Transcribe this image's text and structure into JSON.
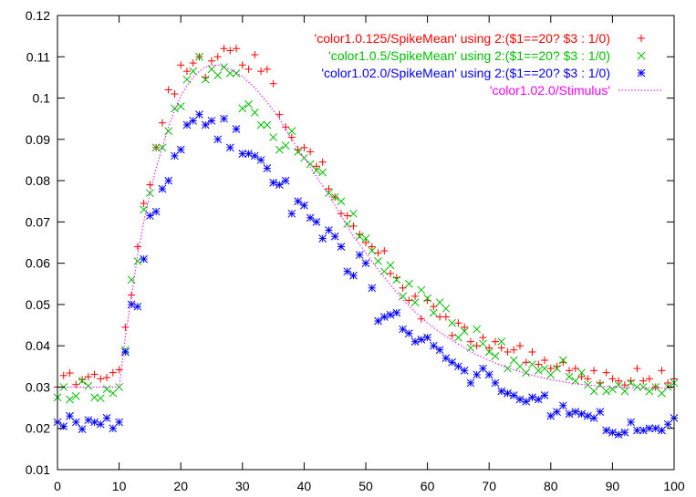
{
  "chart_data": {
    "type": "scatter",
    "title": "",
    "xlabel": "",
    "ylabel": "",
    "xlim": [
      0,
      100
    ],
    "ylim": [
      0.01,
      0.12
    ],
    "x_ticks": [
      "0",
      "10",
      "20",
      "30",
      "40",
      "50",
      "60",
      "70",
      "80",
      "90",
      "100"
    ],
    "y_ticks": [
      "0.01",
      "0.02",
      "0.03",
      "0.04",
      "0.05",
      "0.06",
      "0.07",
      "0.08",
      "0.09",
      "0.1",
      "0.11",
      "0.12"
    ],
    "grid": false,
    "legend_position": "top-right",
    "series": [
      {
        "name": "'color1.0.125/SpikeMean' using 2:($1==20? $3 : 1/0)",
        "marker": "plus",
        "color": "#ff0000",
        "x": [
          0,
          1,
          2,
          3,
          4,
          5,
          6,
          7,
          8,
          9,
          10,
          11,
          12,
          13,
          14,
          15,
          16,
          17,
          18,
          19,
          20,
          21,
          22,
          23,
          24,
          25,
          26,
          27,
          28,
          29,
          30,
          31,
          32,
          33,
          34,
          35,
          36,
          37,
          38,
          39,
          40,
          41,
          42,
          43,
          44,
          45,
          46,
          47,
          48,
          49,
          50,
          51,
          52,
          53,
          54,
          55,
          56,
          57,
          58,
          59,
          60,
          61,
          62,
          63,
          64,
          65,
          66,
          67,
          68,
          69,
          70,
          71,
          72,
          73,
          74,
          75,
          76,
          77,
          78,
          79,
          80,
          81,
          82,
          83,
          84,
          85,
          86,
          87,
          88,
          89,
          90,
          91,
          92,
          93,
          94,
          95,
          96,
          97,
          98,
          99,
          100
        ],
        "y": [
          0.03,
          0.0328,
          0.0334,
          0.0306,
          0.0318,
          0.0325,
          0.0331,
          0.032,
          0.0323,
          0.0335,
          0.0342,
          0.0445,
          0.0523,
          0.064,
          0.0745,
          0.079,
          0.088,
          0.094,
          0.102,
          0.101,
          0.108,
          0.1065,
          0.1085,
          0.11,
          0.105,
          0.109,
          0.11,
          0.112,
          0.1115,
          0.112,
          0.108,
          0.107,
          0.1105,
          0.1065,
          0.107,
          0.1035,
          0.096,
          0.093,
          0.0905,
          0.0875,
          0.088,
          0.087,
          0.0835,
          0.0845,
          0.078,
          0.076,
          0.072,
          0.0715,
          0.069,
          0.067,
          0.065,
          0.064,
          0.0625,
          0.063,
          0.0575,
          0.0565,
          0.054,
          0.051,
          0.052,
          0.0465,
          0.051,
          0.0495,
          0.047,
          0.047,
          0.0425,
          0.0455,
          0.0445,
          0.041,
          0.04,
          0.042,
          0.0395,
          0.041,
          0.0395,
          0.0385,
          0.039,
          0.04,
          0.036,
          0.0385,
          0.0355,
          0.0365,
          0.0345,
          0.035,
          0.036,
          0.034,
          0.0345,
          0.0325,
          0.032,
          0.034,
          0.031,
          0.0335,
          0.032,
          0.0315,
          0.0305,
          0.0315,
          0.0345,
          0.0315,
          0.032,
          0.03,
          0.034,
          0.031,
          0.032
        ]
      },
      {
        "name": "'color1.0.5/SpikeMean' using 2:($1==20? $3 : 1/0)",
        "marker": "cross",
        "color": "#00c000",
        "x": [
          0,
          1,
          2,
          3,
          4,
          5,
          6,
          7,
          8,
          9,
          10,
          11,
          12,
          13,
          14,
          15,
          16,
          17,
          18,
          19,
          20,
          21,
          22,
          23,
          24,
          25,
          26,
          27,
          28,
          29,
          30,
          31,
          32,
          33,
          34,
          35,
          36,
          37,
          38,
          39,
          40,
          41,
          42,
          43,
          44,
          45,
          46,
          47,
          48,
          49,
          50,
          51,
          52,
          53,
          54,
          55,
          56,
          57,
          58,
          59,
          60,
          61,
          62,
          63,
          64,
          65,
          66,
          67,
          68,
          69,
          70,
          71,
          72,
          73,
          74,
          75,
          76,
          77,
          78,
          79,
          80,
          81,
          82,
          83,
          84,
          85,
          86,
          87,
          88,
          89,
          90,
          91,
          92,
          93,
          94,
          95,
          96,
          97,
          98,
          99,
          100
        ],
        "y": [
          0.0275,
          0.03,
          0.027,
          0.0278,
          0.0315,
          0.0303,
          0.0275,
          0.0273,
          0.0295,
          0.0285,
          0.03,
          0.039,
          0.056,
          0.0605,
          0.073,
          0.077,
          0.088,
          0.088,
          0.092,
          0.0975,
          0.098,
          0.1045,
          0.1065,
          0.11,
          0.1045,
          0.107,
          0.1055,
          0.1075,
          0.106,
          0.106,
          0.0975,
          0.0985,
          0.0965,
          0.0935,
          0.0935,
          0.0905,
          0.0875,
          0.0885,
          0.092,
          0.087,
          0.0855,
          0.084,
          0.0825,
          0.082,
          0.077,
          0.076,
          0.075,
          0.0695,
          0.072,
          0.0665,
          0.066,
          0.063,
          0.0605,
          0.058,
          0.0595,
          0.056,
          0.052,
          0.055,
          0.0505,
          0.0535,
          0.0515,
          0.048,
          0.0505,
          0.049,
          0.0455,
          0.042,
          0.0435,
          0.0395,
          0.044,
          0.0405,
          0.0385,
          0.0375,
          0.041,
          0.0345,
          0.0365,
          0.035,
          0.0335,
          0.0355,
          0.034,
          0.0345,
          0.033,
          0.0345,
          0.0365,
          0.0325,
          0.0315,
          0.0335,
          0.0305,
          0.029,
          0.0305,
          0.029,
          0.0295,
          0.0305,
          0.029,
          0.031,
          0.03,
          0.03,
          0.029,
          0.03,
          0.0285,
          0.03,
          0.031
        ]
      },
      {
        "name": "'color1.02.0/SpikeMean' using 2:($1==20? $3 : 1/0)",
        "marker": "star",
        "color": "#0000ff",
        "x": [
          0,
          1,
          2,
          3,
          4,
          5,
          6,
          7,
          8,
          9,
          10,
          11,
          12,
          13,
          14,
          15,
          16,
          17,
          18,
          19,
          20,
          21,
          22,
          23,
          24,
          25,
          26,
          27,
          28,
          29,
          30,
          31,
          32,
          33,
          34,
          35,
          36,
          37,
          38,
          39,
          40,
          41,
          42,
          43,
          44,
          45,
          46,
          47,
          48,
          49,
          50,
          51,
          52,
          53,
          54,
          55,
          56,
          57,
          58,
          59,
          60,
          61,
          62,
          63,
          64,
          65,
          66,
          67,
          68,
          69,
          70,
          71,
          72,
          73,
          74,
          75,
          76,
          77,
          78,
          79,
          80,
          81,
          82,
          83,
          84,
          85,
          86,
          87,
          88,
          89,
          90,
          91,
          92,
          93,
          94,
          95,
          96,
          97,
          98,
          99,
          100
        ],
        "y": [
          0.0215,
          0.0205,
          0.023,
          0.0215,
          0.0198,
          0.022,
          0.0215,
          0.021,
          0.0225,
          0.02,
          0.0215,
          0.0385,
          0.05,
          0.0495,
          0.061,
          0.0715,
          0.0725,
          0.078,
          0.08,
          0.086,
          0.0875,
          0.0935,
          0.0945,
          0.096,
          0.0935,
          0.0945,
          0.09,
          0.095,
          0.088,
          0.0925,
          0.0865,
          0.0865,
          0.086,
          0.085,
          0.083,
          0.0795,
          0.079,
          0.08,
          0.072,
          0.075,
          0.074,
          0.071,
          0.07,
          0.066,
          0.068,
          0.0665,
          0.064,
          0.058,
          0.057,
          0.062,
          0.06,
          0.054,
          0.046,
          0.047,
          0.0475,
          0.048,
          0.044,
          0.043,
          0.041,
          0.0415,
          0.042,
          0.04,
          0.039,
          0.037,
          0.036,
          0.035,
          0.034,
          0.031,
          0.033,
          0.0345,
          0.033,
          0.031,
          0.029,
          0.0285,
          0.028,
          0.027,
          0.0265,
          0.0275,
          0.027,
          0.028,
          0.023,
          0.024,
          0.0255,
          0.0235,
          0.024,
          0.0235,
          0.023,
          0.0225,
          0.024,
          0.0195,
          0.019,
          0.0185,
          0.019,
          0.0215,
          0.0195,
          0.0195,
          0.02,
          0.02,
          0.0195,
          0.021,
          0.0225
        ]
      },
      {
        "name": "'color1.02.0/Stimulus'",
        "marker": "line",
        "line_style": "dotted",
        "color": "#ff00ff",
        "x": [
          0,
          10,
          11,
          12,
          13,
          14,
          15,
          16,
          17,
          18,
          19,
          20,
          21,
          22,
          23,
          24,
          25,
          26,
          27,
          28,
          29,
          30,
          32,
          34,
          36,
          38,
          40,
          42,
          44,
          46,
          48,
          50,
          52,
          54,
          56,
          58,
          60,
          62,
          64,
          66,
          68,
          70,
          72,
          74,
          76,
          78,
          80,
          82,
          84,
          86,
          88,
          90,
          92,
          94,
          96,
          98,
          100
        ],
        "y": [
          0.03,
          0.03,
          0.042,
          0.052,
          0.062,
          0.07,
          0.077,
          0.083,
          0.088,
          0.093,
          0.097,
          0.1005,
          0.103,
          0.105,
          0.1065,
          0.1075,
          0.108,
          0.108,
          0.1075,
          0.107,
          0.1062,
          0.1052,
          0.1025,
          0.099,
          0.095,
          0.09,
          0.0855,
          0.081,
          0.0765,
          0.0715,
          0.0665,
          0.0625,
          0.0585,
          0.0548,
          0.0512,
          0.0482,
          0.0455,
          0.0433,
          0.0413,
          0.0395,
          0.0378,
          0.0365,
          0.0352,
          0.0342,
          0.0333,
          0.0325,
          0.0318,
          0.0313,
          0.0308,
          0.0305,
          0.0302,
          0.03,
          0.0299,
          0.0298,
          0.0298,
          0.0298,
          0.0298
        ]
      }
    ]
  }
}
